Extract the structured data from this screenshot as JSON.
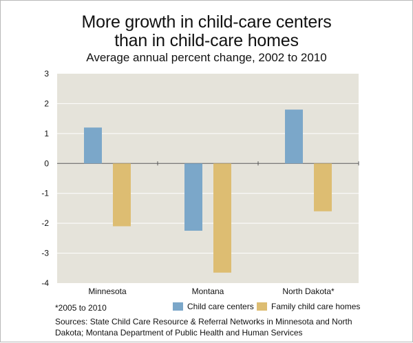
{
  "title_line1": "More growth in child-care centers",
  "title_line2": "than in child-care homes",
  "subtitle": "Average annual percent change, 2002 to 2010",
  "footnote": "*2005 to 2010",
  "sources": "Sources: State Child Care Resource & Referral Networks in Minnesota and North Dakota; Montana Department of Public Health and Human Services",
  "colors": {
    "plot_background": "#e5e3da",
    "gridline": "#ffffff",
    "centers": "#7ba7c9",
    "homes": "#ddbd72"
  },
  "chart_data": {
    "type": "bar",
    "categories": [
      "Minnesota",
      "Montana",
      "North Dakota*"
    ],
    "series": [
      {
        "name": "Child care centers",
        "values": [
          1.2,
          -2.25,
          1.8
        ]
      },
      {
        "name": "Family child care homes",
        "values": [
          -2.1,
          -3.65,
          -1.6
        ]
      }
    ],
    "ylim": [
      -4,
      3
    ],
    "yticks": [
      "3",
      "2",
      "1",
      "0",
      "-1",
      "-2",
      "-3",
      "-4"
    ],
    "grid": true,
    "legend_position": "bottom"
  }
}
